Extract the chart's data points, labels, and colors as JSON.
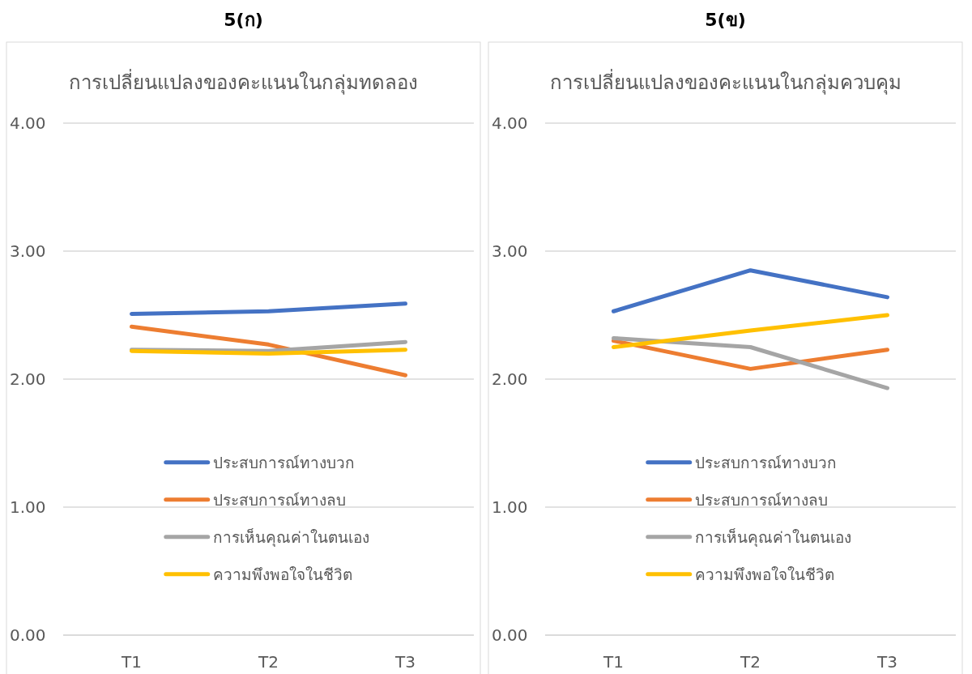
{
  "chart_data": [
    {
      "type": "line",
      "title": "5(ก)",
      "subtitle": "การเปลี่ยนแปลงของคะแนนในกลุ่มทดลอง",
      "categories": [
        "T1",
        "T2",
        "T3"
      ],
      "ylim": [
        0,
        4
      ],
      "yticks": [
        {
          "value": 0,
          "label": "0.00"
        },
        {
          "value": 1,
          "label": "1.00"
        },
        {
          "value": 2,
          "label": "2.00"
        },
        {
          "value": 3,
          "label": "3.00"
        },
        {
          "value": 4,
          "label": "4.00"
        }
      ],
      "grid": "y",
      "legend": "bottom",
      "series": [
        {
          "name": "ประสบการณ์ทางบวก",
          "color": "#4472c4",
          "values": [
            2.51,
            2.53,
            2.59
          ]
        },
        {
          "name": "ประสบการณ์ทางลบ",
          "color": "#ed7d31",
          "values": [
            2.41,
            2.27,
            2.03
          ]
        },
        {
          "name": "การเห็นคุณค่าในตนเอง",
          "color": "#a5a5a5",
          "values": [
            2.23,
            2.22,
            2.29
          ]
        },
        {
          "name": "ความพึงพอใจในชีวิต",
          "color": "#ffc000",
          "values": [
            2.22,
            2.2,
            2.23
          ]
        }
      ]
    },
    {
      "type": "line",
      "title": "5(ข)",
      "subtitle": "การเปลี่ยนแปลงของคะแนนในกลุ่มควบคุม",
      "categories": [
        "T1",
        "T2",
        "T3"
      ],
      "ylim": [
        0,
        4
      ],
      "yticks": [
        {
          "value": 0,
          "label": "0.00"
        },
        {
          "value": 1,
          "label": "1.00"
        },
        {
          "value": 2,
          "label": "2.00"
        },
        {
          "value": 3,
          "label": "3.00"
        },
        {
          "value": 4,
          "label": "4.00"
        }
      ],
      "grid": "y",
      "legend": "bottom",
      "series": [
        {
          "name": "ประสบการณ์ทางบวก",
          "color": "#4472c4",
          "values": [
            2.53,
            2.85,
            2.64
          ]
        },
        {
          "name": "ประสบการณ์ทางลบ",
          "color": "#ed7d31",
          "values": [
            2.3,
            2.08,
            2.23
          ]
        },
        {
          "name": "การเห็นคุณค่าในตนเอง",
          "color": "#a5a5a5",
          "values": [
            2.32,
            2.25,
            1.93
          ]
        },
        {
          "name": "ความพึงพอใจในชีวิต",
          "color": "#ffc000",
          "values": [
            2.25,
            2.38,
            2.5
          ]
        }
      ]
    }
  ]
}
